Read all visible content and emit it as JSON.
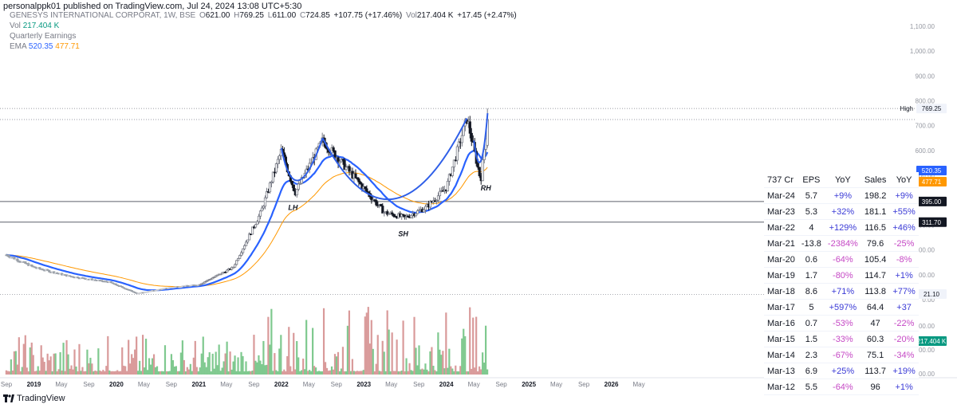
{
  "header": {
    "published_line": "personalppk01 published on TradingView.com, Jul 24, 2024 13:08 UTC+5:30"
  },
  "legend": {
    "symbol": "GENESYS INTERNATIONAL CORPORAT, 1W, BSE",
    "open_label": "O",
    "open": "621.00",
    "high_label": "H",
    "high": "769.25",
    "low_label": "L",
    "low": "611.00",
    "close_label": "C",
    "close": "724.85",
    "change": "+107.75 (+17.46%)",
    "vol_label": "Vol",
    "vol": "217.404 K",
    "vol_change": "+17.45 (+2.47%)",
    "vol_row_label": "Vol",
    "vol_row_value": "217.404 K",
    "earnings_label": "Quarterly Earnings",
    "ema_label": "EMA",
    "ema_fast": "520.35",
    "ema_slow": "477.71"
  },
  "colors": {
    "up": "#089981",
    "down": "#f23645",
    "ema_fast": "#2962ff",
    "ema_slow": "#ff9800",
    "pattern": "#2f5fe8",
    "vol_up": "#7fc98f",
    "vol_down": "#d99a9a"
  },
  "chart_data": {
    "type": "candlestick",
    "x_tick_labels": [
      "Sep",
      "2019",
      "May",
      "Sep",
      "2020",
      "May",
      "Sep",
      "2021",
      "May",
      "Sep",
      "2022",
      "May",
      "Sep",
      "2023",
      "May",
      "Sep",
      "2024",
      "May",
      "Sep",
      "2025",
      "May",
      "Sep",
      "2026",
      "May"
    ],
    "price_axis": {
      "ticks": [
        "1,100.00",
        "1,000.00",
        "900.00",
        "800.00",
        "700.00",
        "600.00",
        "500.00",
        "400.00",
        "300.00",
        "200.00",
        "100.00",
        "0.00"
      ],
      "volume_ticks": [
        "−100.00",
        "−200.00",
        "−300.00"
      ],
      "badges": [
        {
          "label": "High",
          "value": "769.25"
        },
        {
          "label": "",
          "value": "520.35"
        },
        {
          "label": "",
          "value": "477.71"
        },
        {
          "label": "",
          "value": "395.00"
        },
        {
          "label": "",
          "value": "311.70"
        },
        {
          "label": "Low",
          "value": "21.10"
        },
        {
          "label": "",
          "value": "217.404 K"
        }
      ]
    },
    "horizontal_levels": [
      395,
      311.7
    ],
    "dotted_levels": [
      769.25,
      724.85,
      21.1
    ],
    "pattern_labels": [
      "LH",
      "SH",
      "RH"
    ],
    "price_path_approx": [
      {
        "t": "2018-09",
        "close": 180
      },
      {
        "t": "2019-01",
        "close": 130
      },
      {
        "t": "2019-06",
        "close": 95
      },
      {
        "t": "2019-12",
        "close": 70
      },
      {
        "t": "2020-04",
        "close": 25
      },
      {
        "t": "2020-09",
        "close": 50
      },
      {
        "t": "2021-01",
        "close": 60
      },
      {
        "t": "2021-06",
        "close": 130
      },
      {
        "t": "2021-10",
        "close": 350
      },
      {
        "t": "2022-01",
        "close": 600
      },
      {
        "t": "2022-03",
        "close": 430
      },
      {
        "t": "2022-07",
        "close": 640
      },
      {
        "t": "2022-12",
        "close": 480
      },
      {
        "t": "2023-04",
        "close": 350
      },
      {
        "t": "2023-07",
        "close": 330
      },
      {
        "t": "2023-10",
        "close": 370
      },
      {
        "t": "2024-01",
        "close": 450
      },
      {
        "t": "2024-04",
        "close": 730
      },
      {
        "t": "2024-06",
        "close": 480
      },
      {
        "t": "2024-07",
        "close": 724.85
      }
    ]
  },
  "earnings_table": {
    "headers": [
      "737 Cr",
      "EPS",
      "YoY",
      "Sales",
      "YoY"
    ],
    "rows": [
      {
        "period": "Mar-24",
        "eps": "5.7",
        "eps_yoy": "+9%",
        "sales": "198.2",
        "sales_yoy": "+9%"
      },
      {
        "period": "Mar-23",
        "eps": "5.3",
        "eps_yoy": "+32%",
        "sales": "181.1",
        "sales_yoy": "+55%"
      },
      {
        "period": "Mar-22",
        "eps": "4",
        "eps_yoy": "+129%",
        "sales": "116.5",
        "sales_yoy": "+46%"
      },
      {
        "period": "Mar-21",
        "eps": "-13.8",
        "eps_yoy": "-2384%",
        "sales": "79.6",
        "sales_yoy": "-25%"
      },
      {
        "period": "Mar-20",
        "eps": "0.6",
        "eps_yoy": "-64%",
        "sales": "105.4",
        "sales_yoy": "-8%"
      },
      {
        "period": "Mar-19",
        "eps": "1.7",
        "eps_yoy": "-80%",
        "sales": "114.7",
        "sales_yoy": "+1%"
      },
      {
        "period": "Mar-18",
        "eps": "8.6",
        "eps_yoy": "+71%",
        "sales": "113.8",
        "sales_yoy": "+77%"
      },
      {
        "period": "Mar-17",
        "eps": "5",
        "eps_yoy": "+597%",
        "sales": "64.4",
        "sales_yoy": "+37"
      },
      {
        "period": "Mar-16",
        "eps": "0.7",
        "eps_yoy": "-53%",
        "sales": "47",
        "sales_yoy": "-22%"
      },
      {
        "period": "Mar-15",
        "eps": "1.5",
        "eps_yoy": "-33%",
        "sales": "60.3",
        "sales_yoy": "-20%"
      },
      {
        "period": "Mar-14",
        "eps": "2.3",
        "eps_yoy": "-67%",
        "sales": "75.1",
        "sales_yoy": "-34%"
      },
      {
        "period": "Mar-13",
        "eps": "6.9",
        "eps_yoy": "+25%",
        "sales": "113.7",
        "sales_yoy": "+19%"
      },
      {
        "period": "Mar-12",
        "eps": "5.5",
        "eps_yoy": "-64%",
        "sales": "96",
        "sales_yoy": "+1%"
      }
    ]
  },
  "footer": {
    "brand": "TradingView",
    "logo_icon": "tradingview-logo-icon"
  }
}
